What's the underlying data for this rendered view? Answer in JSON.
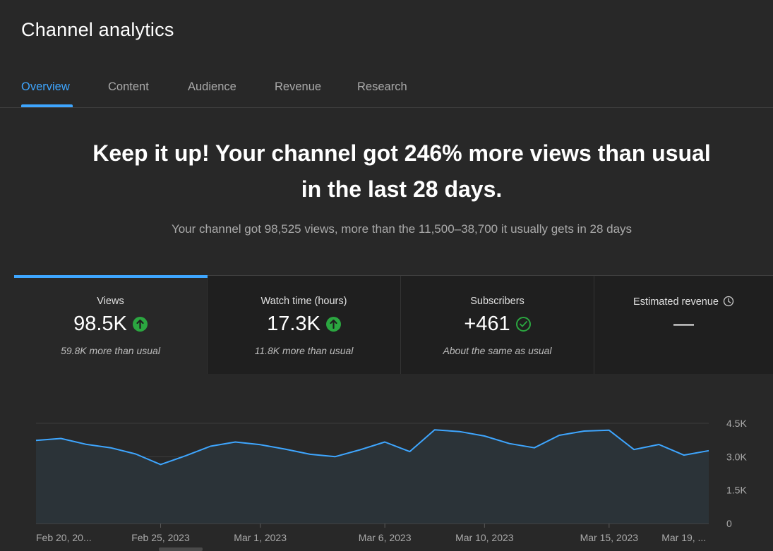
{
  "header": {
    "title": "Channel analytics"
  },
  "tabs": [
    {
      "label": "Overview",
      "active": true
    },
    {
      "label": "Content",
      "active": false
    },
    {
      "label": "Audience",
      "active": false
    },
    {
      "label": "Revenue",
      "active": false
    },
    {
      "label": "Research",
      "active": false
    }
  ],
  "summary": {
    "headline_line1": "Keep it up! Your channel got 246% more views than usual",
    "headline_line2": "in the last 28 days.",
    "subline": "Your channel got 98,525 views, more than the 11,500–38,700 it usually gets in 28 days"
  },
  "cards": [
    {
      "label": "Views",
      "value": "98.5K",
      "note": "59.8K more than usual",
      "icon": "arrow-up-icon",
      "active": true
    },
    {
      "label": "Watch time (hours)",
      "value": "17.3K",
      "note": "11.8K more than usual",
      "icon": "arrow-up-icon",
      "active": false
    },
    {
      "label": "Subscribers",
      "value": "+461",
      "note": "About the same as usual",
      "icon": "check-circle-icon",
      "active": false
    },
    {
      "label": "Estimated revenue",
      "value": "—",
      "note": "",
      "icon": "clock-icon",
      "active": false
    }
  ],
  "colors": {
    "accent": "#3ea6ff",
    "positive": "#2ba640",
    "line": "#3ea6ff",
    "area": "#2b3338"
  },
  "chart_data": {
    "type": "area",
    "x_tick_labels": [
      "Feb 20, 20...",
      "Feb 25, 2023",
      "Mar 1, 2023",
      "Mar 6, 2023",
      "Mar 10, 2023",
      "Mar 15, 2023",
      "Mar 19, ..."
    ],
    "y_tick_labels": [
      "4.5K",
      "3.0K",
      "1.5K",
      "0"
    ],
    "ylim": [
      0,
      4500
    ],
    "grid": true,
    "series": [
      {
        "values": [
          3730,
          3820,
          3560,
          3400,
          3120,
          2650,
          3040,
          3470,
          3660,
          3540,
          3340,
          3110,
          3000,
          3310,
          3660,
          3230,
          4210,
          4130,
          3930,
          3590,
          3400,
          3960,
          4150,
          4190,
          3320,
          3550,
          3070,
          3270
        ]
      }
    ]
  }
}
